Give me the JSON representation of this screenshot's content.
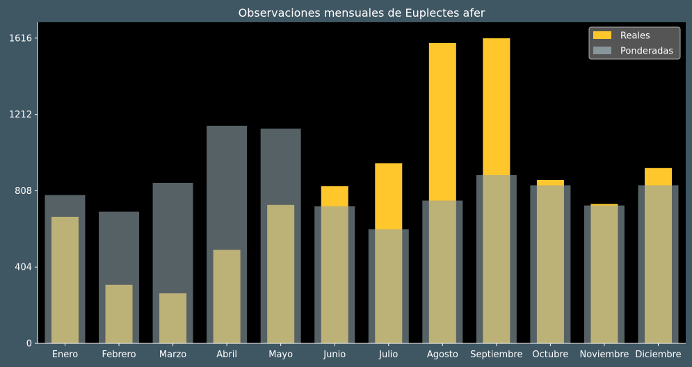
{
  "chart_data": {
    "type": "bar",
    "title": "Observaciones mensuales de Euplectes afer",
    "xlabel": "",
    "ylabel": "",
    "categories": [
      "Enero",
      "Febrero",
      "Marzo",
      "Abril",
      "Mayo",
      "Junio",
      "Julio",
      "Agosto",
      "Septiembre",
      "Octubre",
      "Noviembre",
      "Diciembre"
    ],
    "yticks": [
      0,
      404,
      808,
      1212,
      1616
    ],
    "ylim": [
      0,
      1700
    ],
    "series": [
      {
        "name": "Reales",
        "color": "#ffc72c",
        "values": [
          670,
          310,
          265,
          495,
          733,
          832,
          953,
          1590,
          1615,
          865,
          738,
          928
        ]
      },
      {
        "name": "Ponderadas",
        "color": "#8fa2a8",
        "values": [
          785,
          697,
          850,
          1152,
          1137,
          726,
          604,
          756,
          891,
          837,
          730,
          837
        ]
      }
    ],
    "legend": {
      "placement": "top-right"
    },
    "grid": false,
    "colors": {
      "background": "#3f5663",
      "plot_area": "#000000",
      "text": "#ffffff"
    }
  }
}
